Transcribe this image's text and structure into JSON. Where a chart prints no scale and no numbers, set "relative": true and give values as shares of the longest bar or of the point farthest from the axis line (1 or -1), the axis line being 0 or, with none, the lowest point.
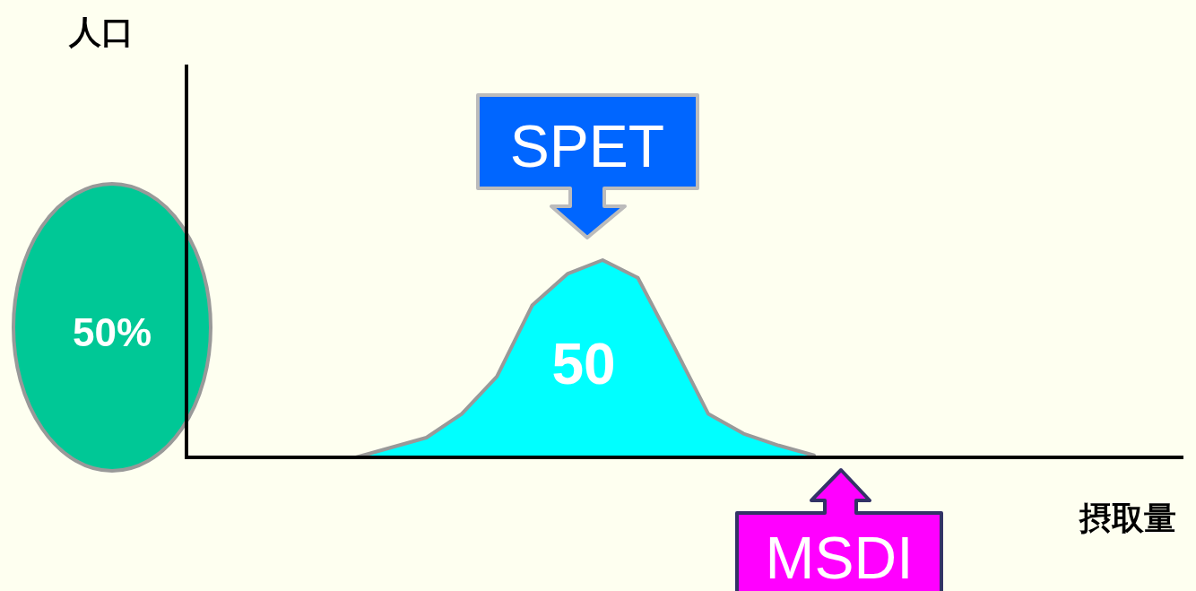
{
  "chart_data": {
    "type": "area",
    "relative": true,
    "categories": [
      null,
      null,
      null,
      null,
      null,
      null,
      null,
      null,
      null,
      null,
      null,
      null,
      null,
      null
    ],
    "series": [
      {
        "color": "#00ffff",
        "values": [
          0,
          0.05,
          0.1,
          0.22,
          0.41,
          0.77,
          0.93,
          1.0,
          0.91,
          0.57,
          0.22,
          0.12,
          0.06,
          0.01
        ]
      }
    ],
    "annotations": [
      "SPET",
      "MSDI",
      "50",
      "50%",
      "人口",
      "摂取量"
    ]
  }
}
